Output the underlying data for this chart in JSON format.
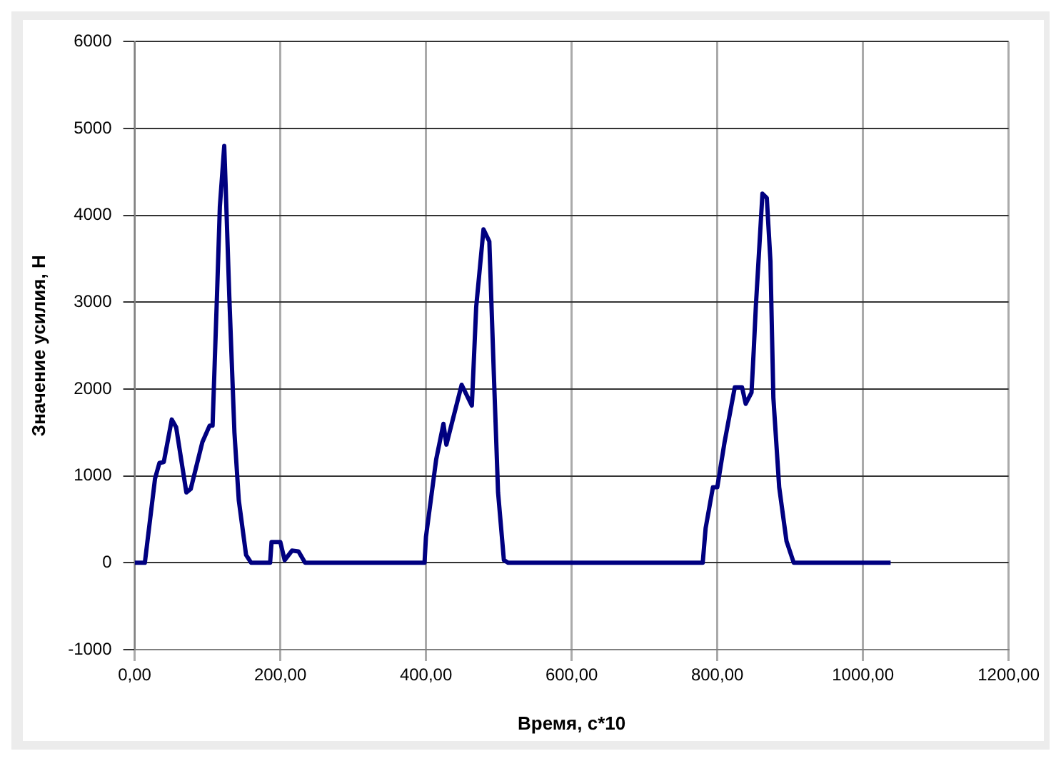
{
  "chart_data": {
    "type": "line",
    "xlabel": "Время, с*10",
    "ylabel": "Значение усилия, Н",
    "xlim": [
      0,
      1200
    ],
    "ylim": [
      -1000,
      6000
    ],
    "xticks": [
      {
        "value": 0,
        "label": "0,00"
      },
      {
        "value": 200,
        "label": "200,00"
      },
      {
        "value": 400,
        "label": "400,00"
      },
      {
        "value": 600,
        "label": "600,00"
      },
      {
        "value": 800,
        "label": "800,00"
      },
      {
        "value": 1000,
        "label": "1000,00"
      },
      {
        "value": 1200,
        "label": "1200,00"
      }
    ],
    "yticks": [
      -1000,
      0,
      1000,
      2000,
      3000,
      4000,
      5000,
      6000
    ],
    "grid": true,
    "marker": "none",
    "line_style": "solid",
    "series": [
      {
        "color": "#000080",
        "x": [
          0,
          14,
          28,
          34,
          40,
          51,
          57,
          71,
          77,
          93,
          103,
          107,
          113,
          117,
          123,
          125,
          130,
          137,
          143,
          153,
          160,
          186,
          188,
          200,
          206,
          216,
          225,
          234,
          398,
          400,
          414,
          424,
          428,
          449,
          463,
          469,
          479,
          487,
          493,
          499,
          507,
          513,
          780,
          784,
          794,
          800,
          810,
          824,
          834,
          839,
          847,
          850,
          853,
          862,
          868,
          873,
          877,
          885,
          895,
          905,
          1038
        ],
        "values": [
          0,
          0,
          970,
          1150,
          1160,
          1650,
          1560,
          810,
          850,
          1390,
          1580,
          1580,
          3060,
          4100,
          4800,
          4330,
          3060,
          1500,
          720,
          90,
          0,
          0,
          240,
          240,
          30,
          140,
          130,
          0,
          0,
          300,
          1190,
          1600,
          1360,
          2050,
          1810,
          2950,
          3840,
          3700,
          2220,
          810,
          30,
          0,
          0,
          400,
          870,
          870,
          1390,
          2020,
          2020,
          1830,
          1960,
          2440,
          2960,
          4250,
          4200,
          3470,
          1900,
          870,
          250,
          0,
          0
        ]
      }
    ]
  }
}
